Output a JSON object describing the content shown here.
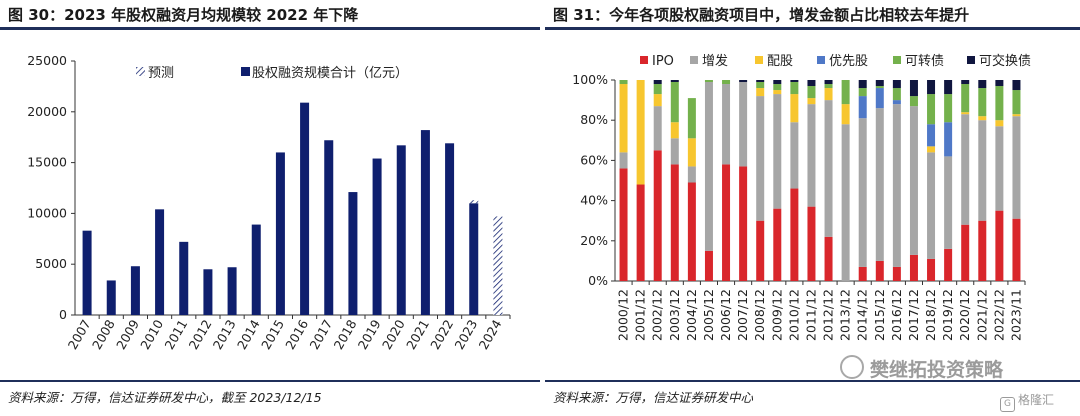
{
  "left": {
    "title": "图 30：2023 年股权融资月均规模较 2022 年下降",
    "source": "资料来源：万得，信达证券研发中心，截至 2023/12/15"
  },
  "right": {
    "title": "图 31：今年各项股权融资项目中，增发金额占比相较去年提升",
    "source": "资料来源：万得，信达证券研发中心"
  },
  "watermark": "樊继拓投资策略",
  "logo": "格隆汇",
  "colors": {
    "navy": "#0f1f6e",
    "ipo": "#d9262b",
    "zengfa": "#a6a6a6",
    "peigu": "#f7c62f",
    "youxiangu": "#4f78c7",
    "kezhuanzhai": "#74b14c",
    "kejiaohuanzhai": "#10163f",
    "rule": "#1f2f5a"
  },
  "chart_data": [
    {
      "type": "bar",
      "categories": [
        "2007",
        "2008",
        "2009",
        "2010",
        "2011",
        "2012",
        "2013",
        "2014",
        "2015",
        "2016",
        "2017",
        "2018",
        "2019",
        "2020",
        "2021",
        "2022",
        "2023",
        "2024"
      ],
      "series": [
        {
          "name": "股权融资规模合计（亿元）",
          "values": [
            8300,
            3400,
            4800,
            10400,
            7200,
            4500,
            4700,
            8900,
            16000,
            20900,
            17200,
            12100,
            15400,
            16700,
            18200,
            16900,
            11000,
            null
          ]
        },
        {
          "name": "预测",
          "values": [
            null,
            null,
            null,
            null,
            null,
            null,
            null,
            null,
            null,
            null,
            null,
            null,
            null,
            null,
            null,
            null,
            11300,
            9700
          ]
        }
      ],
      "legend": [
        "预测",
        "股权融资规模合计（亿元）"
      ],
      "legend_position": "top",
      "ylim": [
        0,
        25000
      ],
      "yticks": [
        "0",
        "5000",
        "10000",
        "15000",
        "20000",
        "25000"
      ],
      "xlabel": "",
      "ylabel": "",
      "grid": false
    },
    {
      "type": "bar",
      "stacked": true,
      "percent": true,
      "categories": [
        "2000/12",
        "2001/12",
        "2002/12",
        "2003/12",
        "2004/12",
        "2005/12",
        "2006/12",
        "2007/12",
        "2008/12",
        "2009/12",
        "2010/12",
        "2011/12",
        "2012/12",
        "2013/12",
        "2014/12",
        "2015/12",
        "2016/12",
        "2017/12",
        "2018/12",
        "2019/12",
        "2020/12",
        "2021/12",
        "2022/12",
        "2023/11"
      ],
      "series": [
        {
          "name": "IPO",
          "values": [
            56,
            48,
            65,
            58,
            49,
            15,
            58,
            57,
            30,
            36,
            46,
            37,
            22,
            0,
            7,
            10,
            7,
            13,
            11,
            16,
            28,
            30,
            35,
            31
          ]
        },
        {
          "name": "增发",
          "values": [
            8,
            0,
            22,
            13,
            8,
            84,
            40,
            42,
            62,
            57,
            33,
            51,
            68,
            78,
            74,
            76,
            81,
            74,
            53,
            46,
            55,
            50,
            42,
            51
          ]
        },
        {
          "name": "配股",
          "values": [
            34,
            52,
            6,
            8,
            14,
            0,
            0,
            0,
            4,
            2,
            14,
            3,
            6,
            10,
            0,
            0,
            0,
            0,
            3,
            0,
            1,
            2,
            3,
            1
          ]
        },
        {
          "name": "优先股",
          "values": [
            0,
            0,
            0,
            0,
            0,
            0,
            0,
            0,
            0,
            0,
            0,
            0,
            0,
            0,
            11,
            10,
            2,
            0,
            11,
            17,
            0,
            0,
            0,
            0
          ]
        },
        {
          "name": "可转债",
          "values": [
            2,
            0,
            5,
            20,
            20,
            1,
            2,
            0,
            3,
            3,
            6,
            6,
            2,
            12,
            4,
            1,
            6,
            5,
            15,
            14,
            14,
            14,
            17,
            12
          ]
        },
        {
          "name": "可交换债",
          "values": [
            0,
            0,
            2,
            1,
            0,
            0,
            0,
            1,
            1,
            2,
            1,
            3,
            2,
            0,
            4,
            3,
            4,
            8,
            7,
            7,
            2,
            4,
            3,
            5
          ]
        }
      ],
      "legend_position": "top",
      "ylim": [
        0,
        100
      ],
      "yticks": [
        "0%",
        "20%",
        "40%",
        "60%",
        "80%",
        "100%"
      ],
      "xlabel": "",
      "ylabel": "",
      "grid": false
    }
  ]
}
